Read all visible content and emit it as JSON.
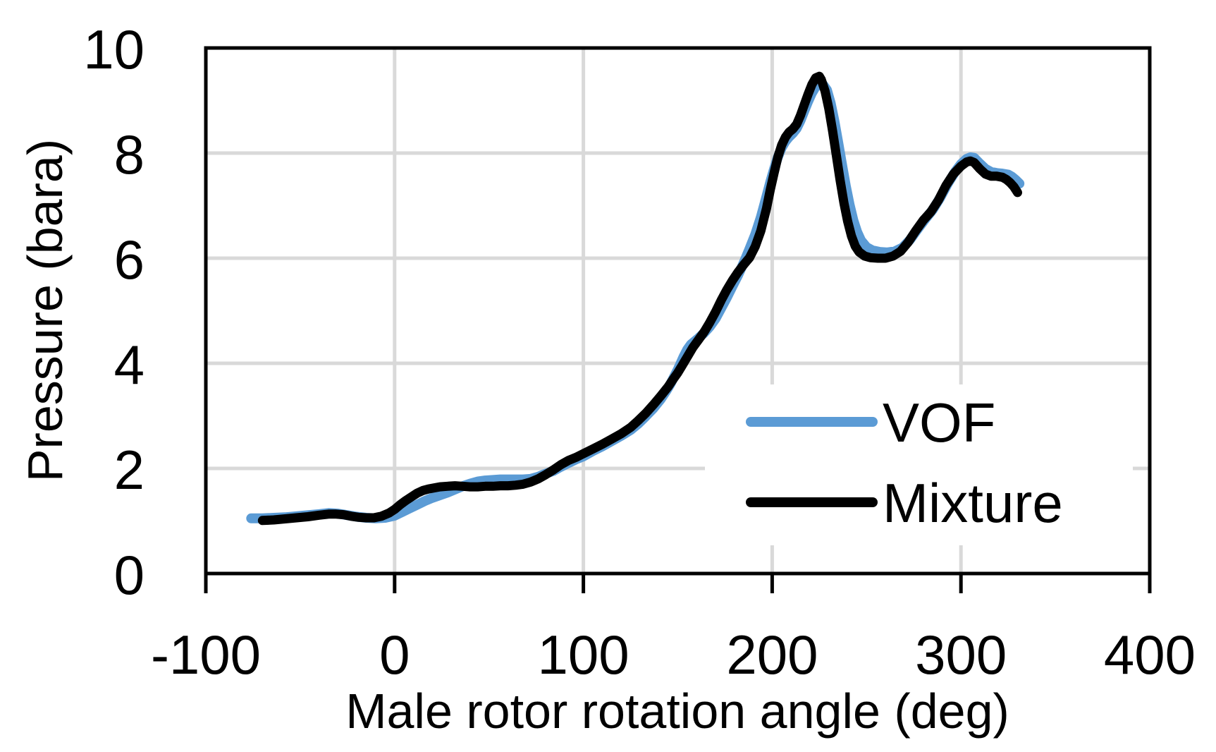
{
  "chart_data": {
    "type": "line",
    "title": "",
    "xlabel": "Male rotor rotation angle (deg)",
    "ylabel": "Pressure (bara)",
    "xlim": [
      -100,
      400
    ],
    "ylim": [
      0,
      10
    ],
    "x_ticks": [
      -100,
      0,
      100,
      200,
      300,
      400
    ],
    "y_ticks": [
      0,
      2,
      4,
      6,
      8,
      10
    ],
    "grid": true,
    "legend_position": "inside-right",
    "series": [
      {
        "name": "VOF",
        "color": "#5B9BD5",
        "stroke_width": 14,
        "points": [
          [
            -76,
            1.05
          ],
          [
            -70,
            1.05
          ],
          [
            -64,
            1.06
          ],
          [
            -58,
            1.07
          ],
          [
            -52,
            1.09
          ],
          [
            -46,
            1.11
          ],
          [
            -40,
            1.13
          ],
          [
            -35,
            1.15
          ],
          [
            -30,
            1.14
          ],
          [
            -25,
            1.11
          ],
          [
            -20,
            1.08
          ],
          [
            -15,
            1.06
          ],
          [
            -10,
            1.05
          ],
          [
            -5,
            1.06
          ],
          [
            0,
            1.1
          ],
          [
            4,
            1.17
          ],
          [
            8,
            1.24
          ],
          [
            12,
            1.31
          ],
          [
            16,
            1.38
          ],
          [
            20,
            1.44
          ],
          [
            24,
            1.49
          ],
          [
            28,
            1.54
          ],
          [
            32,
            1.6
          ],
          [
            36,
            1.66
          ],
          [
            40,
            1.71
          ],
          [
            44,
            1.75
          ],
          [
            48,
            1.77
          ],
          [
            52,
            1.78
          ],
          [
            56,
            1.79
          ],
          [
            60,
            1.79
          ],
          [
            64,
            1.79
          ],
          [
            68,
            1.79
          ],
          [
            72,
            1.8
          ],
          [
            76,
            1.84
          ],
          [
            80,
            1.9
          ],
          [
            84,
            1.95
          ],
          [
            88,
            2.03
          ],
          [
            92,
            2.1
          ],
          [
            96,
            2.17
          ],
          [
            100,
            2.23
          ],
          [
            105,
            2.33
          ],
          [
            110,
            2.42
          ],
          [
            115,
            2.52
          ],
          [
            120,
            2.62
          ],
          [
            125,
            2.73
          ],
          [
            129,
            2.85
          ],
          [
            133,
            2.99
          ],
          [
            137,
            3.14
          ],
          [
            141,
            3.32
          ],
          [
            144,
            3.48
          ],
          [
            146,
            3.6
          ],
          [
            148,
            3.74
          ],
          [
            150,
            3.88
          ],
          [
            151,
            3.96
          ],
          [
            153,
            4.12
          ],
          [
            155,
            4.26
          ],
          [
            157,
            4.36
          ],
          [
            159,
            4.42
          ],
          [
            161,
            4.48
          ],
          [
            164,
            4.58
          ],
          [
            167,
            4.7
          ],
          [
            170,
            4.85
          ],
          [
            173,
            5.05
          ],
          [
            176,
            5.25
          ],
          [
            179,
            5.47
          ],
          [
            182,
            5.68
          ],
          [
            185,
            5.92
          ],
          [
            188,
            6.18
          ],
          [
            191,
            6.45
          ],
          [
            194,
            6.78
          ],
          [
            197,
            7.18
          ],
          [
            199,
            7.45
          ],
          [
            201,
            7.7
          ],
          [
            203,
            7.92
          ],
          [
            205,
            8.1
          ],
          [
            207,
            8.22
          ],
          [
            209,
            8.31
          ],
          [
            211,
            8.38
          ],
          [
            213,
            8.47
          ],
          [
            215,
            8.62
          ],
          [
            217,
            8.8
          ],
          [
            219,
            8.98
          ],
          [
            221,
            9.14
          ],
          [
            223,
            9.26
          ],
          [
            225,
            9.31
          ],
          [
            227,
            9.3
          ],
          [
            229,
            9.2
          ],
          [
            231,
            8.95
          ],
          [
            233,
            8.6
          ],
          [
            235,
            8.2
          ],
          [
            237,
            7.78
          ],
          [
            239,
            7.38
          ],
          [
            241,
            7.02
          ],
          [
            243,
            6.72
          ],
          [
            245,
            6.5
          ],
          [
            247,
            6.34
          ],
          [
            250,
            6.21
          ],
          [
            253,
            6.15
          ],
          [
            257,
            6.12
          ],
          [
            261,
            6.11
          ],
          [
            265,
            6.13
          ],
          [
            269,
            6.2
          ],
          [
            273,
            6.35
          ],
          [
            277,
            6.55
          ],
          [
            281,
            6.74
          ],
          [
            285,
            6.92
          ],
          [
            289,
            7.15
          ],
          [
            293,
            7.42
          ],
          [
            297,
            7.65
          ],
          [
            300,
            7.79
          ],
          [
            303,
            7.89
          ],
          [
            305,
            7.92
          ],
          [
            307,
            7.91
          ],
          [
            310,
            7.8
          ],
          [
            313,
            7.7
          ],
          [
            316,
            7.64
          ],
          [
            319,
            7.62
          ],
          [
            322,
            7.61
          ],
          [
            325,
            7.59
          ],
          [
            327,
            7.55
          ],
          [
            329,
            7.49
          ],
          [
            331,
            7.42
          ]
        ]
      },
      {
        "name": "Mixture",
        "color": "#000000",
        "stroke_width": 13,
        "points": [
          [
            -70,
            1.01
          ],
          [
            -64,
            1.02
          ],
          [
            -58,
            1.04
          ],
          [
            -52,
            1.06
          ],
          [
            -46,
            1.08
          ],
          [
            -40,
            1.11
          ],
          [
            -35,
            1.13
          ],
          [
            -31,
            1.13
          ],
          [
            -27,
            1.12
          ],
          [
            -23,
            1.09
          ],
          [
            -19,
            1.07
          ],
          [
            -15,
            1.06
          ],
          [
            -11,
            1.06
          ],
          [
            -7,
            1.09
          ],
          [
            -3,
            1.15
          ],
          [
            0,
            1.22
          ],
          [
            3,
            1.31
          ],
          [
            6,
            1.39
          ],
          [
            9,
            1.46
          ],
          [
            12,
            1.53
          ],
          [
            15,
            1.58
          ],
          [
            18,
            1.61
          ],
          [
            21,
            1.63
          ],
          [
            24,
            1.65
          ],
          [
            28,
            1.66
          ],
          [
            32,
            1.67
          ],
          [
            36,
            1.66
          ],
          [
            40,
            1.65
          ],
          [
            44,
            1.65
          ],
          [
            48,
            1.66
          ],
          [
            52,
            1.66
          ],
          [
            56,
            1.67
          ],
          [
            60,
            1.67
          ],
          [
            64,
            1.68
          ],
          [
            68,
            1.7
          ],
          [
            72,
            1.74
          ],
          [
            76,
            1.8
          ],
          [
            80,
            1.88
          ],
          [
            84,
            1.97
          ],
          [
            88,
            2.07
          ],
          [
            92,
            2.15
          ],
          [
            96,
            2.21
          ],
          [
            100,
            2.28
          ],
          [
            105,
            2.37
          ],
          [
            110,
            2.46
          ],
          [
            115,
            2.56
          ],
          [
            120,
            2.66
          ],
          [
            125,
            2.78
          ],
          [
            129,
            2.91
          ],
          [
            133,
            3.05
          ],
          [
            137,
            3.21
          ],
          [
            141,
            3.38
          ],
          [
            145,
            3.56
          ],
          [
            148,
            3.72
          ],
          [
            150,
            3.82
          ],
          [
            152,
            3.94
          ],
          [
            155,
            4.12
          ],
          [
            158,
            4.3
          ],
          [
            161,
            4.45
          ],
          [
            164,
            4.6
          ],
          [
            167,
            4.78
          ],
          [
            170,
            4.98
          ],
          [
            173,
            5.2
          ],
          [
            176,
            5.4
          ],
          [
            179,
            5.58
          ],
          [
            182,
            5.74
          ],
          [
            185,
            5.88
          ],
          [
            188,
            6.01
          ],
          [
            191,
            6.22
          ],
          [
            194,
            6.52
          ],
          [
            197,
            6.95
          ],
          [
            199,
            7.3
          ],
          [
            201,
            7.62
          ],
          [
            203,
            7.92
          ],
          [
            205,
            8.15
          ],
          [
            207,
            8.3
          ],
          [
            209,
            8.4
          ],
          [
            211,
            8.46
          ],
          [
            213,
            8.55
          ],
          [
            215,
            8.72
          ],
          [
            217,
            8.92
          ],
          [
            219,
            9.12
          ],
          [
            221,
            9.3
          ],
          [
            223,
            9.43
          ],
          [
            225,
            9.46
          ],
          [
            226,
            9.4
          ],
          [
            228,
            9.18
          ],
          [
            230,
            8.85
          ],
          [
            232,
            8.42
          ],
          [
            234,
            7.95
          ],
          [
            236,
            7.48
          ],
          [
            238,
            7.05
          ],
          [
            240,
            6.7
          ],
          [
            242,
            6.42
          ],
          [
            244,
            6.23
          ],
          [
            246,
            6.12
          ],
          [
            249,
            6.04
          ],
          [
            252,
            6.01
          ],
          [
            256,
            6.0
          ],
          [
            260,
            6.0
          ],
          [
            264,
            6.04
          ],
          [
            268,
            6.13
          ],
          [
            272,
            6.3
          ],
          [
            276,
            6.52
          ],
          [
            280,
            6.72
          ],
          [
            284,
            6.88
          ],
          [
            288,
            7.1
          ],
          [
            292,
            7.38
          ],
          [
            296,
            7.6
          ],
          [
            300,
            7.75
          ],
          [
            303,
            7.83
          ],
          [
            305,
            7.85
          ],
          [
            307,
            7.82
          ],
          [
            310,
            7.7
          ],
          [
            313,
            7.6
          ],
          [
            316,
            7.56
          ],
          [
            319,
            7.56
          ],
          [
            322,
            7.54
          ],
          [
            324,
            7.5
          ],
          [
            326,
            7.44
          ],
          [
            328,
            7.36
          ],
          [
            330,
            7.25
          ]
        ]
      }
    ]
  },
  "legend": {
    "items": [
      {
        "label": "VOF",
        "color": "#5B9BD5"
      },
      {
        "label": "Mixture",
        "color": "#000000"
      }
    ]
  },
  "colors": {
    "background": "#FFFFFF",
    "gridline": "#D9D9D9",
    "axis": "#000000",
    "text": "#000000",
    "legend_background": "#FFFFFF"
  }
}
